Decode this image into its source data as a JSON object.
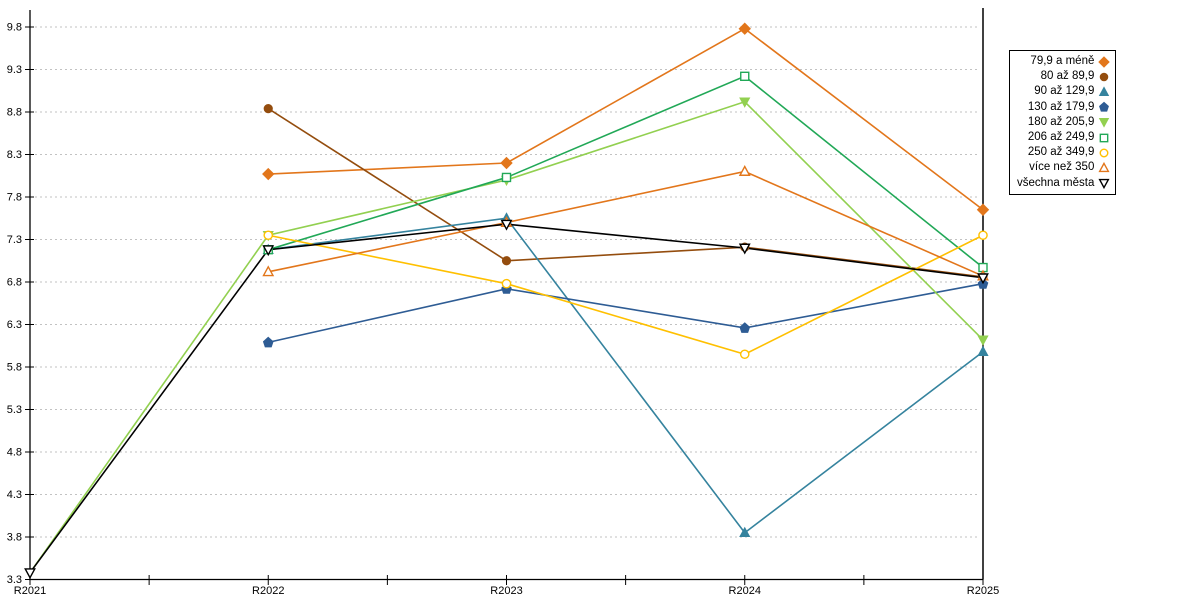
{
  "chart_data": {
    "type": "line",
    "title": "",
    "xlabel": "",
    "ylabel": "",
    "x_categories": [
      "R2021",
      "R2022",
      "R2023",
      "R2024",
      "R2025"
    ],
    "y_ticks": [
      3.3,
      3.8,
      4.3,
      4.8,
      5.3,
      5.8,
      6.3,
      6.8,
      7.3,
      7.8,
      8.3,
      8.8,
      9.3,
      9.8
    ],
    "y_tick_labels": [
      "3.3",
      "3.8",
      "4.3",
      "4.8",
      "5.3",
      "5.8",
      "6.3",
      "6.8",
      "7.3",
      "7.8",
      "8.3",
      "8.8",
      "9.3",
      "9.8"
    ],
    "ylim": [
      3.3,
      9.8
    ],
    "grid": "horizontal-dashed",
    "gridline_color": "#c2c2c2",
    "axis_color": "#000000",
    "legend_position": "top-right",
    "series": [
      {
        "name": "79,9 a méně",
        "marker": "diamond",
        "filled": true,
        "color": "#e2761b",
        "values": [
          null,
          8.07,
          8.2,
          9.78,
          7.65
        ]
      },
      {
        "name": "80 až 89,9",
        "marker": "circle",
        "filled": true,
        "color": "#944d0e",
        "values": [
          null,
          8.84,
          7.05,
          7.21,
          6.86
        ]
      },
      {
        "name": "90 až 129,9",
        "marker": "triangle-up",
        "filled": true,
        "color": "#35839e",
        "values": [
          null,
          7.18,
          7.55,
          3.85,
          5.98
        ]
      },
      {
        "name": "130 až 179,9",
        "marker": "pentagon",
        "filled": true,
        "color": "#2e5c94",
        "values": [
          null,
          6.09,
          6.72,
          6.26,
          6.78
        ]
      },
      {
        "name": "180 až 205,9",
        "marker": "triangle-down",
        "filled": true,
        "color": "#92d050",
        "values": [
          3.38,
          7.35,
          8.0,
          8.92,
          6.12
        ]
      },
      {
        "name": "206 až 249,9",
        "marker": "square",
        "filled": false,
        "color": "#21a857",
        "values": [
          null,
          7.18,
          8.03,
          9.22,
          6.97
        ]
      },
      {
        "name": "250 až 349,9",
        "marker": "circle",
        "filled": false,
        "color": "#ffc000",
        "values": [
          null,
          7.35,
          6.78,
          5.95,
          7.35
        ]
      },
      {
        "name": "více než 350",
        "marker": "triangle-up",
        "filled": false,
        "color": "#e2761b",
        "values": [
          null,
          6.92,
          7.5,
          8.1,
          6.87
        ]
      },
      {
        "name": "všechna města",
        "marker": "triangle-down",
        "filled": false,
        "color": "#000000",
        "values": [
          3.38,
          7.18,
          7.48,
          7.2,
          6.85
        ]
      }
    ]
  }
}
